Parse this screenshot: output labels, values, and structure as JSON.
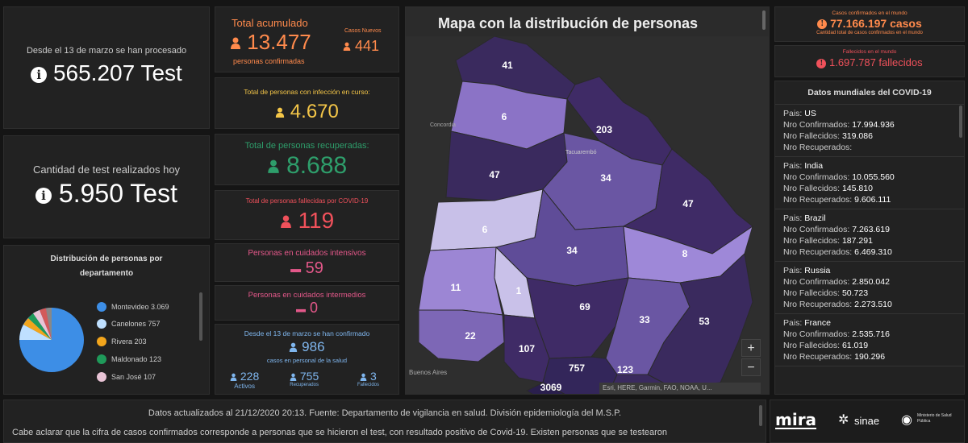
{
  "tests_total": {
    "caption": "Desde el 13 de marzo se han procesado",
    "value": "565.207 Test"
  },
  "tests_today": {
    "caption": "Cantidad de test realizados hoy",
    "value": "5.950 Test"
  },
  "distribution": {
    "title": "Distribución de personas por departamento",
    "legend": [
      {
        "label": "Montevideo  3.069",
        "color": "#3d8ee6"
      },
      {
        "label": "Canelones  757",
        "color": "#bfe0ff"
      },
      {
        "label": "Rivera  203",
        "color": "#f2a51c"
      },
      {
        "label": "Maldonado  123",
        "color": "#1f9a5a"
      },
      {
        "label": "San José  107",
        "color": "#e9c4d6"
      }
    ]
  },
  "total_acumulado": {
    "title": "Total acumulado",
    "value": "13.477",
    "caption": "personas confirmadas",
    "new_label": "Casos Nuevos",
    "new_value": "441"
  },
  "en_curso": {
    "title": "Total de personas con infección en curso:",
    "value": "4.670"
  },
  "recuperadas": {
    "title": "Total de personas recuperadas:",
    "value": "8.688"
  },
  "fallecidas": {
    "title": "Total de personas fallecidas por COVID-19",
    "value": "119"
  },
  "intensivos": {
    "title": "Personas en cuidados intensivos",
    "value": "59"
  },
  "intermedios": {
    "title": "Personas en cuidados intermedios",
    "value": "0"
  },
  "salud": {
    "caption_top": "Desde el 13 de marzo se han confirmado",
    "value": "986",
    "caption_bottom": "casos en personal de la salud",
    "activos_value": "228",
    "activos_label": "Activos",
    "recuperados_value": "755",
    "recuperados_label": "Recuperados",
    "fallecidos_value": "3",
    "fallecidos_label": "Fallecidos"
  },
  "map": {
    "title": "Mapa con la distribución de personas",
    "attribution": "Esri, HERE, Garmin, FAO, NOAA, U...",
    "place_labels": [
      "Concordia",
      "Buenos Aires",
      "Tacuarembó"
    ],
    "zoom_in": "+",
    "zoom_out": "−",
    "departments": [
      {
        "value": "41",
        "shade": "#3a2a5e"
      },
      {
        "value": "6",
        "shade": "#8b73c6"
      },
      {
        "value": "203",
        "shade": "#3f2b66"
      },
      {
        "value": "47",
        "shade": "#3a2a5e"
      },
      {
        "value": "34",
        "shade": "#6a56a3"
      },
      {
        "value": "47",
        "shade": "#3f2b66"
      },
      {
        "value": "6",
        "shade": "#c8c0e8"
      },
      {
        "value": "34",
        "shade": "#5f4c98"
      },
      {
        "value": "8",
        "shade": "#9e88d8"
      },
      {
        "value": "11",
        "shade": "#9c86d4"
      },
      {
        "value": "1",
        "shade": "#c9c1e9"
      },
      {
        "value": "69",
        "shade": "#3f2b66"
      },
      {
        "value": "33",
        "shade": "#6a56a3"
      },
      {
        "value": "53",
        "shade": "#3a2a5e"
      },
      {
        "value": "22",
        "shade": "#7d67b6"
      },
      {
        "value": "107",
        "shade": "#3f2b66"
      },
      {
        "value": "757",
        "shade": "#33265a"
      },
      {
        "value": "123",
        "shade": "#3a2a5e"
      },
      {
        "value": "3069",
        "shade": "#2a1f4d"
      }
    ]
  },
  "world_confirmed": {
    "title": "Casos confirmados en el mundo",
    "value": "77.166.197 casos",
    "caption": "Cantidad total de casos confirmados en el mundo"
  },
  "world_deaths": {
    "title": "Fallecidos en el mundo",
    "value": "1.697.787 fallecidos"
  },
  "world_list": {
    "title": "Datos mundiales del COVID-19",
    "rows": [
      {
        "country": "US",
        "confirmed": "17.994.936",
        "deaths": "319.086",
        "recovered": ""
      },
      {
        "country": "India",
        "confirmed": "10.055.560",
        "deaths": "145.810",
        "recovered": "9.606.111"
      },
      {
        "country": "Brazil",
        "confirmed": "7.263.619",
        "deaths": "187.291",
        "recovered": "6.469.310"
      },
      {
        "country": "Russia",
        "confirmed": "2.850.042",
        "deaths": "50.723",
        "recovered": "2.273.510"
      },
      {
        "country": "France",
        "confirmed": "2.535.716",
        "deaths": "61.019",
        "recovered": "190.296"
      }
    ],
    "pais_label": "Pais:",
    "conf_label": "Nro Confirmados:",
    "fall_label": "Nro Fallecidos:",
    "rec_label": "Nro Recuperados:"
  },
  "footer": {
    "line1": "Datos actualizados al 21/12/2020 20:13. Fuente: Departamento de vigilancia en salud. División epidemiología del M.S.P.",
    "line2": "Cabe aclarar que la cifra de casos confirmados corresponde a personas que se hicieron el test, con resultado positivo de Covid-19. Existen personas que se testearon",
    "logo_mira": "mira",
    "logo_sinae": "sinae",
    "logo_msp": "Ministerio de Salud Pública"
  },
  "colors": {
    "orange": "#ff8a4c",
    "yellow": "#f4c648",
    "green": "#2e9e6b",
    "red": "#f0515b",
    "pink": "#e4588a",
    "blue": "#7fb6ee"
  }
}
